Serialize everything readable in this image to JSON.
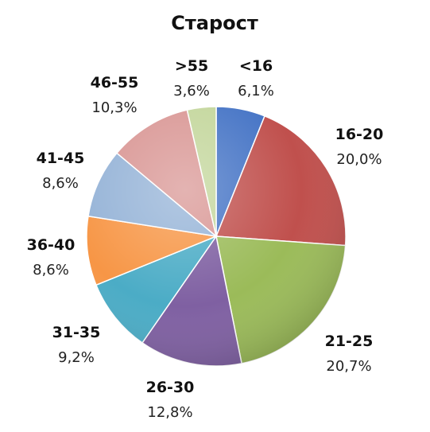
{
  "chart_data": {
    "type": "pie",
    "title": "Старост",
    "categories": [
      "<16",
      "16-20",
      "21-25",
      "26-30",
      "31-35",
      "36-40",
      "41-45",
      "46-55",
      ">55"
    ],
    "values": [
      6.1,
      20.0,
      20.7,
      12.8,
      9.2,
      8.6,
      8.6,
      10.3,
      3.6
    ],
    "value_labels": [
      "6,1%",
      "20,0%",
      "20,7%",
      "12,8%",
      "9,2%",
      "8,6%",
      "8,6%",
      "10,3%",
      "3,6%"
    ],
    "colors": [
      "#4473c5",
      "#c0504d",
      "#9bbb59",
      "#7f60a2",
      "#4bacc6",
      "#f79646",
      "#95b3d7",
      "#d99694",
      "#c3d69b"
    ],
    "start": "12 o'clock",
    "direction": "clockwise",
    "legend": "none"
  }
}
